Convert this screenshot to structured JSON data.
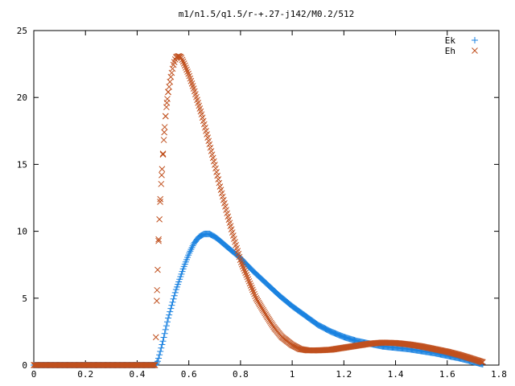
{
  "chart_data": {
    "type": "scatter",
    "title": "m1/n1.5/q1.5/r-+.27-j142/M0.2/512",
    "xlabel": "",
    "ylabel": "",
    "xlim": [
      0,
      1.8
    ],
    "ylim": [
      0,
      25
    ],
    "x_ticks": [
      0,
      0.2,
      0.4,
      0.6,
      0.8,
      1,
      1.2,
      1.4,
      1.6,
      1.8
    ],
    "x_tick_labels": [
      "0",
      "0.2",
      "0.4",
      "0.6",
      "0.8",
      "1",
      "1.2",
      "1.4",
      "1.6",
      "1.8"
    ],
    "y_ticks": [
      0,
      5,
      10,
      15,
      20,
      25
    ],
    "y_tick_labels": [
      "0",
      "5",
      "10",
      "15",
      "20",
      "25"
    ],
    "grid": false,
    "legend_position": "top-right",
    "series": [
      {
        "name": "Ek",
        "marker": "plus",
        "color": "#1a82e0",
        "x": [
          0.0,
          0.1,
          0.2,
          0.3,
          0.4,
          0.47,
          0.48,
          0.5,
          0.52,
          0.55,
          0.58,
          0.6,
          0.62,
          0.64,
          0.66,
          0.68,
          0.7,
          0.72,
          0.75,
          0.8,
          0.85,
          0.9,
          0.95,
          1.0,
          1.05,
          1.1,
          1.15,
          1.2,
          1.25,
          1.3,
          1.35,
          1.4,
          1.45,
          1.5,
          1.55,
          1.6,
          1.65,
          1.7,
          1.74
        ],
        "y": [
          0.0,
          0.0,
          0.0,
          0.0,
          0.0,
          0.0,
          0.3,
          1.8,
          3.5,
          5.6,
          7.3,
          8.3,
          9.1,
          9.6,
          9.8,
          9.8,
          9.6,
          9.3,
          8.8,
          8.0,
          7.0,
          6.1,
          5.2,
          4.4,
          3.7,
          3.0,
          2.5,
          2.1,
          1.8,
          1.6,
          1.4,
          1.3,
          1.2,
          1.05,
          0.9,
          0.7,
          0.5,
          0.25,
          0.05
        ]
      },
      {
        "name": "Eh",
        "marker": "cross",
        "color": "#c0501e",
        "x": [
          0.0,
          0.1,
          0.2,
          0.3,
          0.4,
          0.47,
          0.477,
          0.483,
          0.489,
          0.495,
          0.5,
          0.505,
          0.51,
          0.515,
          0.52,
          0.53,
          0.54,
          0.55,
          0.56,
          0.57,
          0.58,
          0.6,
          0.62,
          0.65,
          0.68,
          0.7,
          0.72,
          0.75,
          0.78,
          0.8,
          0.83,
          0.86,
          0.9,
          0.93,
          0.96,
          1.0,
          1.03,
          1.06,
          1.1,
          1.15,
          1.2,
          1.25,
          1.3,
          1.35,
          1.4,
          1.45,
          1.5,
          1.55,
          1.6,
          1.65,
          1.7,
          1.74
        ],
        "y": [
          0.0,
          0.0,
          0.0,
          0.0,
          0.0,
          0.0,
          5.6,
          9.4,
          12.2,
          14.2,
          15.8,
          17.4,
          18.6,
          19.6,
          20.4,
          21.5,
          22.4,
          23.0,
          23.1,
          23.0,
          22.6,
          21.7,
          20.6,
          18.7,
          16.5,
          15.0,
          13.4,
          11.2,
          9.1,
          7.8,
          6.4,
          5.0,
          3.7,
          2.8,
          2.1,
          1.5,
          1.2,
          1.1,
          1.1,
          1.15,
          1.3,
          1.45,
          1.6,
          1.68,
          1.65,
          1.55,
          1.4,
          1.2,
          1.0,
          0.75,
          0.45,
          0.2
        ]
      }
    ]
  }
}
